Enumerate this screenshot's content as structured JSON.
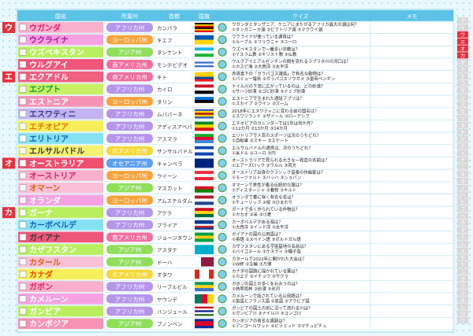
{
  "header": {
    "columns": [
      "国名",
      "所属州",
      "首都",
      "国旗",
      "クイズ",
      "メモ"
    ]
  },
  "sections": [
    {
      "letter": "ウ",
      "rows": [
        {
          "name": "ウガンダ",
          "name_bg": "#f9b0cc",
          "name_color": "#e0206f",
          "region": "アフリカ州",
          "region_color": "#b596ea",
          "capital": "カンパラ",
          "quiz": [
            "ウガンダとタンザニア、ケニアにまたがるアフリカ最大の湖は何？",
            "①タンガニーカ湖 ②ビクトリア湖 ③マラウイ湖"
          ]
        },
        {
          "name": "ウクライナ",
          "name_bg": "#f6a2e2",
          "name_color": "#b0109c",
          "region": "ヨーロッパ州",
          "region_color": "#f7a43e",
          "capital": "キエフ",
          "quiz": [
            "ウクライナが使っている通貨は？",
            "①ルーブル ②フリヴニャ ③ユーロ"
          ]
        },
        {
          "name": "ウズベキスタン",
          "name_bg": "#b9ef5e",
          "name_color": "#ffffff",
          "region": "アジア州",
          "region_color": "#8fdf5c",
          "capital": "タシケント",
          "quiz": [
            "ウズベキスタンで一番多い宗教は？",
            "①イスラム教 ②キリスト教 ③仏教"
          ]
        },
        {
          "name": "ウルグアイ",
          "name_bg": "#f0567a",
          "name_color": "#ffffff",
          "region": "南アメリカ州",
          "region_color": "#f06f9f",
          "capital": "モンテビデオ",
          "quiz": [
            "ウルグアイとアルゼンチンの間を流れるラプラタ川の河口は？",
            "①カスピ海 ②大西洋 ③太平洋"
          ]
        }
      ]
    },
    {
      "letter": "エ",
      "rows": [
        {
          "name": "エクアドル",
          "name_bg": "#f0607f",
          "name_color": "#ffffff",
          "region": "南アメリカ州",
          "region_color": "#f06f9f",
          "capital": "キト",
          "quiz": [
            "赤道直下の「ガラパゴス諸島」で有名な動物は？",
            "①パミュー諸鳥 ②ガラパゴスゾウガメ ③皇帝ペンギン"
          ]
        },
        {
          "name": "エジプト",
          "name_bg": "#c8f064",
          "name_color": "#0a9a3c",
          "region": "アフリカ州",
          "region_color": "#b596ea",
          "capital": "カイロ",
          "quiz": [
            "ナイル川の下流に広がっているのは、どの砂漠？",
            "①サハラ砂漠 ②ゴビ砂漠 ③ナミブ砂漠"
          ]
        },
        {
          "name": "エストニア",
          "name_bg": "#f892b4",
          "name_color": "#ffffff",
          "region": "ヨーロッパ州",
          "region_color": "#f7a43e",
          "capital": "タリン",
          "quiz": [
            "エストニアで生まれた通話アプリは？",
            "①スカイプ ②ライン ③ズーム"
          ]
        },
        {
          "name": "エスワティニ",
          "name_bg": "#c4b4f2",
          "name_color": "#3a3a8a",
          "region": "アフリカ州",
          "region_color": "#b596ea",
          "capital": "ムババーネ",
          "quiz": [
            "2018年にエスワティニに変わる前の国名は？",
            "①スワジランド ②ザイール ③ローデシア"
          ]
        },
        {
          "name": "エチオピア",
          "name_bg": "#f7ee5c",
          "name_color": "#e07a00",
          "region": "アフリカ州",
          "region_color": "#b596ea",
          "capital": "アディスアベバ",
          "quiz": [
            "エチオピアのカレンダーでは1年は何か月？",
            "①12か月 ②13か月 ③14か月"
          ]
        },
        {
          "name": "エリトリア",
          "name_bg": "#86e2f2",
          "name_color": "#1060c0",
          "region": "アフリカ州",
          "region_color": "#b596ea",
          "capital": "アスマラ",
          "quiz": [
            "エリトリアで人気のスポーツは次のうちどれ？",
            "①自転車 ②スキー ③スケート"
          ]
        },
        {
          "name": "エルサルバドル",
          "name_bg": "#f4f070",
          "name_color": "#3a3a3a",
          "region": "北アメリカ州",
          "region_color": "#f4d83a",
          "capital": "サンサルバドル",
          "quiz": [
            "エルサルバドルの通貨は、次のうちどれ？",
            "①米ドル ②ユーロ ③円"
          ]
        }
      ]
    },
    {
      "letter": "オ",
      "rows": [
        {
          "name": "オーストラリア",
          "name_bg": "#f05070",
          "name_color": "#ffffff",
          "region": "オセアニア州",
          "region_color": "#5d9ff0",
          "capital": "キャンベラ",
          "quiz": [
            "オーストラリアで見られる大きな一枚岩の名前は？",
            "①エアーズロック ②ウルル ③両方"
          ]
        },
        {
          "name": "オーストリア",
          "name_bg": "#f9b0cc",
          "name_color": "#e02060",
          "region": "ヨーロッパ州",
          "region_color": "#f7a43e",
          "capital": "ウイーン",
          "quiz": [
            "オーストリア出身のクラシック音楽の作曲家は？",
            "①モーツァルト ②バッハ ③ショパン"
          ]
        },
        {
          "name": "オマーン",
          "name_bg": "#f9c0d8",
          "name_color": "#e06010",
          "region": "アジア州",
          "region_color": "#8fdf5c",
          "capital": "マスカット",
          "quiz": [
            "オマーンで男性が着る伝統的な服は？",
            "①ディスターシャ ②着物 ③キルト"
          ]
        },
        {
          "name": "オランダ",
          "name_bg": "#f6a2e2",
          "name_color": "#ffffff",
          "region": "ヨーロッパ州",
          "region_color": "#f7a43e",
          "capital": "アムステルダム",
          "quiz": [
            "オランダで春に咲く有名な花は？",
            "①チューリップ ②桜 ③ひまわり"
          ]
        }
      ]
    },
    {
      "letter": "カ",
      "rows": [
        {
          "name": "ガーナ",
          "name_bg": "#b9ef5e",
          "name_color": "#ffffff",
          "region": "アフリカ州",
          "region_color": "#b596ea",
          "capital": "アクラ",
          "quiz": [
            "ガーナで多く作られている作物は？",
            "①カカオ ②米 ③小麦"
          ]
        },
        {
          "name": "カーボベルデ",
          "name_bg": "#86e2f2",
          "name_color": "#1060c0",
          "region": "アフリカ州",
          "region_color": "#b596ea",
          "capital": "プライア",
          "quiz": [
            "カーボベルデがある海は？",
            "①大西洋 ②インド洋 ③太平洋"
          ]
        },
        {
          "name": "ガイアナ",
          "name_bg": "#f0567a",
          "name_color": "#3a3a3a",
          "region": "南アメリカ州",
          "region_color": "#f06f9f",
          "capital": "ジョージタウン",
          "quiz": [
            "ガイアナの国の公用語は？",
            "①英語 ②スペイン語 ③ポルトガル語"
          ]
        },
        {
          "name": "カザフスタン",
          "name_bg": "#b9ef5e",
          "name_color": "#ffffff",
          "region": "アジア州",
          "region_color": "#8fdf5c",
          "capital": "アスタナ",
          "quiz": [
            "カザフスタンにある宇宙基地の名前は？",
            "①バイコヌール ②ケネディ ③種子島"
          ]
        },
        {
          "name": "カタール",
          "name_bg": "#f9c0d8",
          "name_color": "#e06010",
          "region": "アジア州",
          "region_color": "#8fdf5c",
          "capital": "ドーハ",
          "quiz": [
            "カタールで2022年に開かれた大会は？",
            "①W杯 ②五輪 ③万博"
          ]
        },
        {
          "name": "カナダ",
          "name_bg": "#f7ee5c",
          "name_color": "#e05000",
          "region": "北アメリカ州",
          "region_color": "#f4d83a",
          "capital": "オタワ",
          "quiz": [
            "カナダの国旗に描かれている葉は？",
            "①カエデ ②イチョウ ③サクラ"
          ]
        },
        {
          "name": "ガボン",
          "name_bg": "#f9b0cc",
          "name_color": "#e02060",
          "region": "アフリカ州",
          "region_color": "#b596ea",
          "capital": "リーブルビル",
          "quiz": [
            "ガボンの国土の多くをおおうのは？",
            "①熱帯雨林 ②砂漠 ③氷河"
          ]
        },
        {
          "name": "カメルーン",
          "name_bg": "#f6a2e2",
          "name_color": "#ffffff",
          "region": "アフリカ州",
          "region_color": "#b596ea",
          "capital": "ヤウンデ",
          "quiz": [
            "カメルーンで話されている公用語は？",
            "①英語とフランス語 ②英語 ③アラビア語"
          ]
        },
        {
          "name": "ガンビア",
          "name_bg": "#b9ef5e",
          "name_color": "#ffffff",
          "region": "アフリカ州",
          "region_color": "#b596ea",
          "capital": "バンジュール",
          "quiz": [
            "ガンビアの国土の形に沿って流れる川は？",
            "①ガンビア川 ②ナイル川 ③コンゴ川"
          ]
        },
        {
          "name": "カンボジア",
          "name_bg": "#f892b4",
          "name_color": "#ffffff",
          "region": "アジア州",
          "region_color": "#8fdf5c",
          "capital": "プノンペン",
          "quiz": [
            "カンボジアの有名な遺跡は？",
            "①アンコールワット ②ピラミッド ③マチュピチュ"
          ]
        }
      ]
    }
  ],
  "index": [
    "ア",
    "イ",
    "ウ",
    "エ",
    "オ",
    "カ",
    "キ",
    "ク",
    "ケ",
    "コ",
    "サ",
    "シ",
    "ス",
    "セ",
    "ソ",
    "タ",
    "チ",
    "ツ",
    "テ",
    "ト",
    "ナ",
    "ニ",
    "ヌ",
    "ネ",
    "ノ",
    "ハ",
    "ヒ",
    "フ",
    "ヘ",
    "ホ",
    "マ",
    "ミ",
    "ム",
    "メ",
    "モ",
    "ヤ",
    "ユ",
    "ヨ",
    "ラ",
    "リ",
    "ル",
    "レ",
    "ロ",
    "ワ"
  ]
}
